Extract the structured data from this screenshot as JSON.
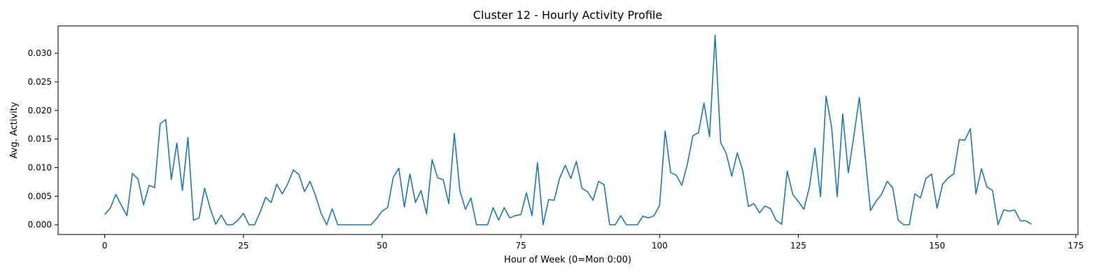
{
  "chart_data": {
    "type": "line",
    "title": "Cluster 12 - Hourly Activity Profile",
    "xlabel": "Hour of Week (0=Mon 0:00)",
    "ylabel": "Avg. Activity",
    "xlim": [
      -8.4,
      175.4
    ],
    "ylim": [
      -0.0017,
      0.0348
    ],
    "xticks": [
      0,
      25,
      50,
      75,
      100,
      125,
      150,
      175
    ],
    "xtick_labels": [
      "0",
      "25",
      "50",
      "75",
      "100",
      "125",
      "150",
      "175"
    ],
    "yticks": [
      0.0,
      0.005,
      0.01,
      0.015,
      0.02,
      0.025,
      0.03
    ],
    "ytick_labels": [
      "0.000",
      "0.005",
      "0.010",
      "0.015",
      "0.020",
      "0.025",
      "0.030"
    ],
    "grid": false,
    "color": "#1f77b4",
    "series": [
      {
        "values": [
          0.0018,
          0.0029,
          0.0053,
          0.0034,
          0.0016,
          0.009,
          0.008,
          0.0035,
          0.0069,
          0.0065,
          0.0177,
          0.0184,
          0.0079,
          0.0143,
          0.006,
          0.0153,
          0.0008,
          0.0012,
          0.0064,
          0.0029,
          0.0001,
          0.0017,
          0.0,
          0.0,
          0.0008,
          0.002,
          0.0,
          0.0,
          0.0022,
          0.0048,
          0.0039,
          0.0071,
          0.0054,
          0.0072,
          0.0096,
          0.0088,
          0.0058,
          0.0076,
          0.0051,
          0.002,
          0.0,
          0.0028,
          0.0,
          0.0,
          0.0,
          0.0,
          0.0,
          0.0,
          0.0,
          0.0011,
          0.0024,
          0.003,
          0.0083,
          0.0099,
          0.0031,
          0.0089,
          0.0039,
          0.006,
          0.0019,
          0.0114,
          0.0082,
          0.0079,
          0.0037,
          0.016,
          0.006,
          0.0027,
          0.0047,
          0.0,
          0.0,
          0.0,
          0.003,
          0.0008,
          0.003,
          0.0012,
          0.0016,
          0.0018,
          0.0056,
          0.0016,
          0.0109,
          0.0,
          0.0044,
          0.0043,
          0.0082,
          0.0104,
          0.0081,
          0.0111,
          0.0064,
          0.0058,
          0.0043,
          0.0076,
          0.007,
          0.0,
          0.0,
          0.0016,
          0.0,
          0.0,
          0.0,
          0.0015,
          0.0012,
          0.0016,
          0.0034,
          0.0164,
          0.0091,
          0.0087,
          0.0069,
          0.0106,
          0.0156,
          0.0161,
          0.0213,
          0.0154,
          0.0332,
          0.0144,
          0.0125,
          0.0085,
          0.0126,
          0.0094,
          0.0032,
          0.0037,
          0.0021,
          0.0033,
          0.0028,
          0.0008,
          0.0001,
          0.0094,
          0.0053,
          0.0041,
          0.0027,
          0.0066,
          0.0134,
          0.0049,
          0.0225,
          0.0171,
          0.0049,
          0.0194,
          0.0091,
          0.0155,
          0.0223,
          0.0125,
          0.0025,
          0.0041,
          0.0053,
          0.0076,
          0.0065,
          0.0008,
          0.0,
          0.0,
          0.0054,
          0.0047,
          0.0081,
          0.0089,
          0.0029,
          0.0071,
          0.0082,
          0.0089,
          0.0149,
          0.0148,
          0.0168,
          0.0054,
          0.0098,
          0.0066,
          0.006,
          0.0,
          0.0026,
          0.0024,
          0.0026,
          0.0007,
          0.0007,
          0.0001
        ]
      }
    ]
  }
}
